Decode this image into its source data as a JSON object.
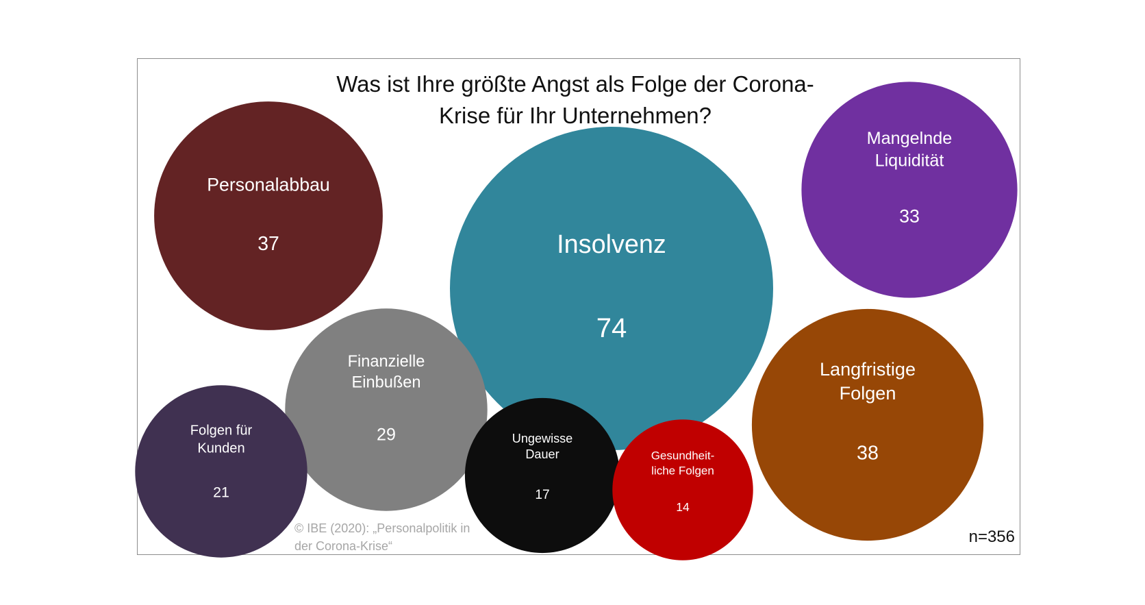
{
  "chart_data": {
    "type": "bubble",
    "title": "Was ist Ihre größte Angst als Folge der Corona-Krise für Ihr Unternehmen?",
    "title_lines": [
      "Was ist Ihre größte Angst als Folge der Corona-",
      "Krise für Ihr Unternehmen?"
    ],
    "bubbles": [
      {
        "label_lines": [
          "Personalabbau"
        ],
        "value": 37,
        "color": "#632324"
      },
      {
        "label_lines": [
          "Insolvenz"
        ],
        "value": 74,
        "color": "#31869b"
      },
      {
        "label_lines": [
          "Mangelnde",
          "Liquidität"
        ],
        "value": 33,
        "color": "#7030a0"
      },
      {
        "label_lines": [
          "Finanzielle",
          "Einbußen"
        ],
        "value": 29,
        "color": "#808080"
      },
      {
        "label_lines": [
          "Folgen für",
          "Kunden"
        ],
        "value": 21,
        "color": "#403151"
      },
      {
        "label_lines": [
          "Ungewisse",
          "Dauer"
        ],
        "value": 17,
        "color": "#0d0d0d"
      },
      {
        "label_lines": [
          "Gesundheit-",
          "liche Folgen"
        ],
        "value": 14,
        "color": "#c00000"
      },
      {
        "label_lines": [
          "Langfristige",
          "Folgen"
        ],
        "value": 38,
        "color": "#974706"
      }
    ],
    "sample_size": "n=356"
  },
  "source_lines": [
    "© IBE (2020): „Personalpolitik in",
    "der Corona-Krise“"
  ]
}
